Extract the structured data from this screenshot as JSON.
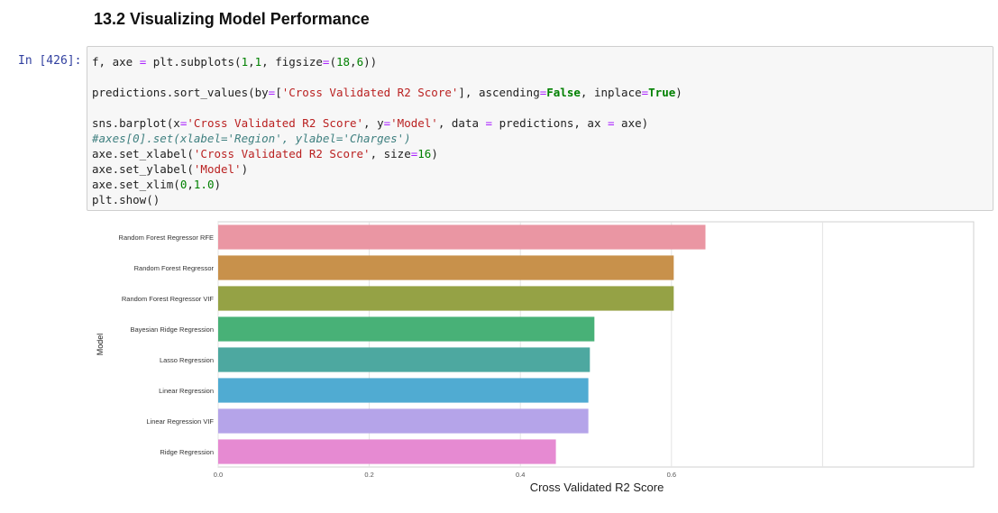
{
  "notebook": {
    "heading": "13.2 Visualizing Model Performance",
    "prompt": "In  [426]:",
    "code_lines": [
      {
        "tokens": [
          {
            "t": "f, axe ",
            "c": ""
          },
          {
            "t": "=",
            "c": "op"
          },
          {
            "t": " plt.subplots(",
            "c": ""
          },
          {
            "t": "1",
            "c": "num"
          },
          {
            "t": ",",
            "c": ""
          },
          {
            "t": "1",
            "c": "num"
          },
          {
            "t": ", figsize",
            "c": ""
          },
          {
            "t": "=",
            "c": "op"
          },
          {
            "t": "(",
            "c": ""
          },
          {
            "t": "18",
            "c": "num"
          },
          {
            "t": ",",
            "c": ""
          },
          {
            "t": "6",
            "c": "num"
          },
          {
            "t": "))",
            "c": ""
          }
        ]
      },
      {
        "gap": true
      },
      {
        "tokens": [
          {
            "t": "predictions.sort_values(by",
            "c": ""
          },
          {
            "t": "=",
            "c": "op"
          },
          {
            "t": "[",
            "c": ""
          },
          {
            "t": "'Cross Validated R2 Score'",
            "c": "str"
          },
          {
            "t": "], ascending",
            "c": ""
          },
          {
            "t": "=",
            "c": "op"
          },
          {
            "t": "False",
            "c": "kw"
          },
          {
            "t": ", inplace",
            "c": ""
          },
          {
            "t": "=",
            "c": "op"
          },
          {
            "t": "True",
            "c": "kw"
          },
          {
            "t": ")",
            "c": ""
          }
        ]
      },
      {
        "gap": true
      },
      {
        "tokens": [
          {
            "t": "sns.barplot(x",
            "c": ""
          },
          {
            "t": "=",
            "c": "op"
          },
          {
            "t": "'Cross Validated R2 Score'",
            "c": "str"
          },
          {
            "t": ", y",
            "c": ""
          },
          {
            "t": "=",
            "c": "op"
          },
          {
            "t": "'Model'",
            "c": "str"
          },
          {
            "t": ", data ",
            "c": ""
          },
          {
            "t": "=",
            "c": "op"
          },
          {
            "t": " predictions, ax ",
            "c": ""
          },
          {
            "t": "=",
            "c": "op"
          },
          {
            "t": " axe)",
            "c": ""
          }
        ]
      },
      {
        "tokens": [
          {
            "t": "#axes[0].set(xlabel='Region', ylabel='Charges')",
            "c": "cmt"
          }
        ]
      },
      {
        "tokens": [
          {
            "t": "axe.set_xlabel(",
            "c": ""
          },
          {
            "t": "'Cross Validated R2 Score'",
            "c": "str"
          },
          {
            "t": ", size",
            "c": ""
          },
          {
            "t": "=",
            "c": "op"
          },
          {
            "t": "16",
            "c": "num"
          },
          {
            "t": ")",
            "c": ""
          }
        ]
      },
      {
        "tokens": [
          {
            "t": "axe.set_ylabel(",
            "c": ""
          },
          {
            "t": "'Model'",
            "c": "str"
          },
          {
            "t": ")",
            "c": ""
          }
        ]
      },
      {
        "tokens": [
          {
            "t": "axe.set_xlim(",
            "c": ""
          },
          {
            "t": "0",
            "c": "num"
          },
          {
            "t": ",",
            "c": ""
          },
          {
            "t": "1.0",
            "c": "num"
          },
          {
            "t": ")",
            "c": ""
          }
        ]
      },
      {
        "tokens": [
          {
            "t": "plt.show()",
            "c": ""
          }
        ]
      }
    ]
  },
  "chart_data": {
    "type": "bar",
    "orientation": "horizontal",
    "categories": [
      "Random Forest Regressor RFE",
      "Random Forest Regressor",
      "Random Forest Regressor VIF",
      "Bayesian Ridge Regression",
      "Lasso Regression",
      "Linear Regression",
      "Linear Regression VIF",
      "Ridge Regression"
    ],
    "values": [
      0.645,
      0.603,
      0.603,
      0.498,
      0.492,
      0.49,
      0.49,
      0.447
    ],
    "colors": [
      "#ea96a3",
      "#c8914b",
      "#95a245",
      "#48b177",
      "#4da8a0",
      "#50abd2",
      "#b5a4e9",
      "#e68ad2"
    ],
    "xlabel": "Cross Validated R2 Score",
    "ylabel": "Model",
    "xlim": [
      0,
      1.0
    ],
    "xticks": [
      "0.0",
      "0.2",
      "0.4",
      "0.6"
    ],
    "grid": true
  }
}
